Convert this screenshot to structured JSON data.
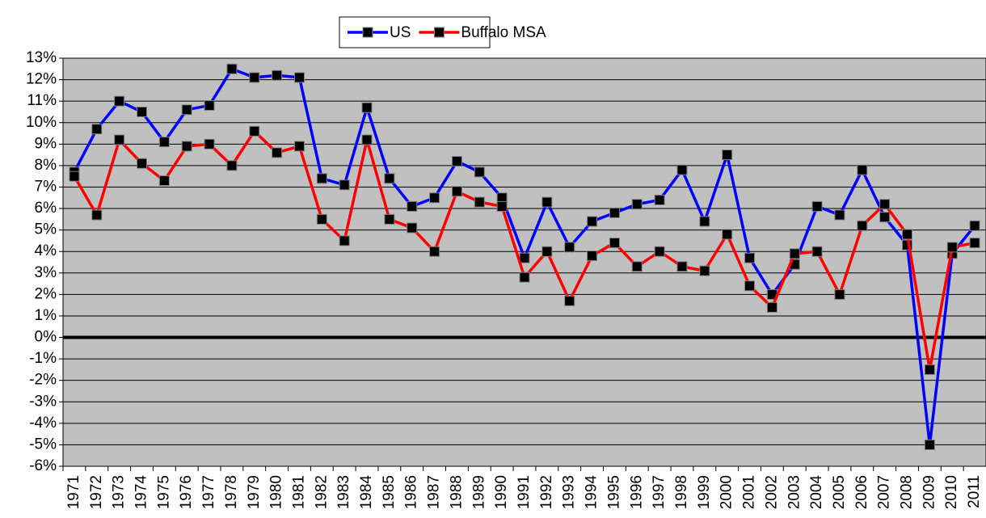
{
  "chart_data": {
    "type": "line",
    "categories": [
      "1971",
      "1972",
      "1973",
      "1974",
      "1975",
      "1976",
      "1977",
      "1978",
      "1979",
      "1980",
      "1981",
      "1982",
      "1983",
      "1984",
      "1985",
      "1986",
      "1987",
      "1988",
      "1989",
      "1990",
      "1991",
      "1992",
      "1993",
      "1994",
      "1995",
      "1996",
      "1997",
      "1998",
      "1999",
      "2000",
      "2001",
      "2002",
      "2003",
      "2004",
      "2005",
      "2006",
      "2007",
      "2008",
      "2009",
      "2010",
      "2011"
    ],
    "series": [
      {
        "name": "US",
        "color": "#0000ff",
        "values": [
          7.7,
          9.7,
          11.0,
          10.5,
          9.1,
          10.6,
          10.8,
          12.5,
          12.1,
          12.2,
          12.1,
          7.4,
          7.1,
          10.7,
          7.4,
          6.1,
          6.5,
          8.2,
          7.7,
          6.5,
          3.7,
          6.3,
          4.2,
          5.4,
          5.8,
          6.2,
          6.4,
          7.8,
          5.4,
          8.5,
          3.7,
          2.0,
          3.4,
          6.1,
          5.7,
          7.8,
          5.6,
          4.3,
          -5.0,
          3.9,
          5.2
        ]
      },
      {
        "name": "Buffalo MSA",
        "color": "#ff0000",
        "values": [
          7.5,
          5.7,
          9.2,
          8.1,
          7.3,
          8.9,
          9.0,
          8.0,
          9.6,
          8.6,
          8.9,
          5.5,
          4.5,
          9.2,
          5.5,
          5.1,
          4.0,
          6.8,
          6.3,
          6.1,
          2.8,
          4.0,
          1.7,
          3.8,
          4.4,
          3.3,
          4.0,
          3.3,
          3.1,
          4.8,
          2.4,
          1.4,
          3.9,
          4.0,
          2.0,
          5.2,
          6.2,
          4.8,
          -1.5,
          4.2,
          4.4
        ]
      }
    ],
    "ylim": [
      -6,
      13
    ],
    "yticks": [
      {
        "value": -6,
        "label": "-6%"
      },
      {
        "value": -5,
        "label": "-5%"
      },
      {
        "value": -4,
        "label": "-4%"
      },
      {
        "value": -3,
        "label": "-3%"
      },
      {
        "value": -2,
        "label": "-2%"
      },
      {
        "value": -1,
        "label": "-1%"
      },
      {
        "value": 0,
        "label": "0%"
      },
      {
        "value": 1,
        "label": "1%"
      },
      {
        "value": 2,
        "label": "2%"
      },
      {
        "value": 3,
        "label": "3%"
      },
      {
        "value": 4,
        "label": "4%"
      },
      {
        "value": 5,
        "label": "5%"
      },
      {
        "value": 6,
        "label": "6%"
      },
      {
        "value": 7,
        "label": "7%"
      },
      {
        "value": 8,
        "label": "8%"
      },
      {
        "value": 9,
        "label": "9%"
      },
      {
        "value": 10,
        "label": "10%"
      },
      {
        "value": 11,
        "label": "11%"
      },
      {
        "value": 12,
        "label": "12%"
      },
      {
        "value": 13,
        "label": "13%"
      }
    ],
    "grid": true,
    "legend": "top",
    "plot_background": "#c0c0c0"
  }
}
